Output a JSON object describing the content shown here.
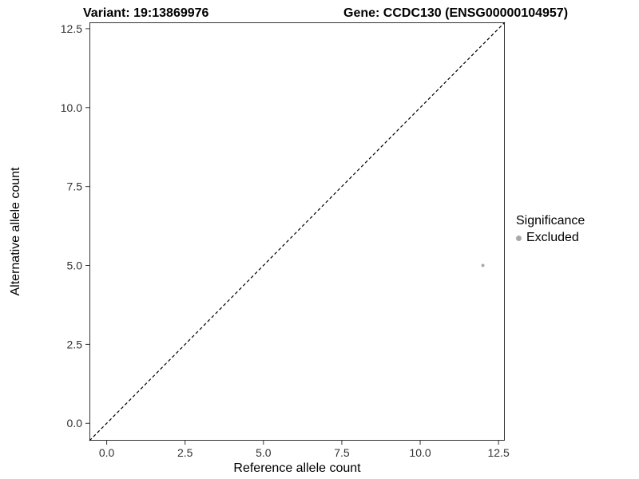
{
  "titles": {
    "variant": "Variant: 19:13869976",
    "gene": "Gene: CCDC130 (ENSG00000104957)"
  },
  "axes": {
    "x_label": "Reference allele count",
    "y_label": "Alternative allele count"
  },
  "legend": {
    "title": "Significance",
    "entries": [
      {
        "label": "Excluded",
        "color": "#a9a9a9"
      }
    ]
  },
  "chart_data": {
    "type": "scatter",
    "title": "Variant: 19:13869976   Gene: CCDC130 (ENSG00000104957)",
    "xlabel": "Reference allele count",
    "ylabel": "Alternative allele count",
    "xlim": [
      -0.55,
      12.7
    ],
    "ylim": [
      -0.55,
      12.7
    ],
    "grid": false,
    "xticks": [
      {
        "value": 0,
        "label": "0.0"
      },
      {
        "value": 2.5,
        "label": "2.5"
      },
      {
        "value": 5,
        "label": "5.0"
      },
      {
        "value": 7.5,
        "label": "7.5"
      },
      {
        "value": 10,
        "label": "10.0"
      },
      {
        "value": 12.5,
        "label": "12.5"
      }
    ],
    "yticks": [
      {
        "value": 0,
        "label": "0.0"
      },
      {
        "value": 2.5,
        "label": "2.5"
      },
      {
        "value": 5,
        "label": "5.0"
      },
      {
        "value": 7.5,
        "label": "7.5"
      },
      {
        "value": 10,
        "label": "10.0"
      },
      {
        "value": 12.5,
        "label": "12.5"
      }
    ],
    "reference_line": {
      "type": "identity",
      "style": "dashed",
      "color": "#000000"
    },
    "series": [
      {
        "name": "Excluded",
        "color": "#a9a9a9",
        "point_radius": 2,
        "points": [
          {
            "x": 12,
            "y": 5
          }
        ]
      }
    ],
    "legend_position": "right"
  }
}
